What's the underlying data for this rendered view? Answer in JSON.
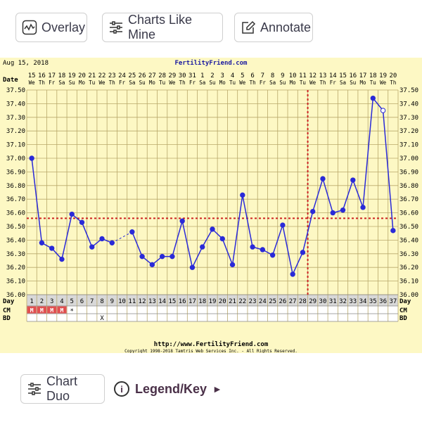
{
  "toolbar": {
    "overlay_label": "Overlay",
    "charts_like_label": "Charts Like Mine",
    "annotate_label": "Annotate"
  },
  "footer_buttons": {
    "chart_duo_label": "Chart Duo",
    "legend_label": "Legend/Key",
    "legend_arrow": "►",
    "info_glyph": "i"
  },
  "icons": [
    "waveform-icon",
    "sliders-icon",
    "edit-icon",
    "info-icon",
    "play-arrow-icon"
  ],
  "colors": {
    "chart_bg": "#fdf8c4",
    "grid": "#b8a86a",
    "line": "#2a2ad8",
    "coverline": "#cc2222",
    "header_bg": "#f5efb0",
    "cm_red": "#e05050"
  },
  "chart_data": {
    "type": "line",
    "date_label": "Aug 15, 2018",
    "site": "FertilityFriend.com",
    "footer_url": "http://www.FertilityFriend.com",
    "copyright": "Copyright 1998-2018 Tamtris Web Services Inc. - All Rights Reserved.",
    "row_labels": {
      "date": "Date",
      "day": "Day",
      "cm": "CM",
      "bd": "BD"
    },
    "dates": [
      "15",
      "16",
      "17",
      "18",
      "19",
      "20",
      "21",
      "22",
      "23",
      "24",
      "25",
      "26",
      "27",
      "28",
      "29",
      "30",
      "31",
      "1",
      "2",
      "3",
      "4",
      "5",
      "6",
      "7",
      "8",
      "9",
      "10",
      "11",
      "12",
      "13",
      "14",
      "15",
      "16",
      "17",
      "18",
      "19",
      "20"
    ],
    "weekdays": [
      "We",
      "Th",
      "Fr",
      "Sa",
      "Su",
      "Mo",
      "Tu",
      "We",
      "Th",
      "Fr",
      "Sa",
      "Su",
      "Mo",
      "Tu",
      "We",
      "Th",
      "Fr",
      "Sa",
      "Su",
      "Mo",
      "Tu",
      "We",
      "Th",
      "Fr",
      "Sa",
      "Su",
      "Mo",
      "Tu",
      "We",
      "Th",
      "Fr",
      "Sa",
      "Su",
      "Mo",
      "Tu",
      "We",
      "Th"
    ],
    "days": [
      1,
      2,
      3,
      4,
      5,
      6,
      7,
      8,
      9,
      10,
      11,
      12,
      13,
      14,
      15,
      16,
      17,
      18,
      19,
      20,
      21,
      22,
      23,
      24,
      25,
      26,
      27,
      28,
      29,
      30,
      31,
      32,
      33,
      34,
      35,
      36,
      37
    ],
    "temps": [
      37.0,
      36.38,
      36.34,
      36.26,
      36.59,
      36.53,
      36.35,
      36.41,
      36.38,
      null,
      36.46,
      36.28,
      36.22,
      36.28,
      36.28,
      36.54,
      36.2,
      36.35,
      36.48,
      36.41,
      36.22,
      36.73,
      36.35,
      36.33,
      36.29,
      36.51,
      36.15,
      36.31,
      36.61,
      36.85,
      36.6,
      36.62,
      36.84,
      36.64,
      37.44,
      37.35,
      36.47
    ],
    "open_points": [
      36
    ],
    "dashed_segments": [
      [
        9,
        11
      ]
    ],
    "cm": [
      "M",
      "M",
      "M",
      "M",
      "*",
      "",
      "",
      "",
      "",
      "",
      "",
      "",
      "",
      "",
      "",
      "",
      "",
      "",
      "",
      "",
      "",
      "",
      "",
      "",
      "",
      "",
      "",
      "",
      "",
      "",
      "",
      "",
      "",
      "",
      "",
      "",
      ""
    ],
    "bd": [
      "",
      "",
      "",
      "",
      "",
      "",
      "",
      "X",
      "",
      "",
      "",
      "",
      "",
      "",
      "",
      "",
      "",
      "",
      "",
      "",
      "",
      "",
      "",
      "",
      "",
      "",
      "",
      "",
      "",
      "",
      "",
      "",
      "",
      "",
      "",
      "",
      ""
    ],
    "ovulation_day": 28,
    "coverline": 36.56,
    "ylim": [
      36.0,
      37.5
    ],
    "y_ticks": [
      "37.50",
      "37.40",
      "37.30",
      "37.20",
      "37.10",
      "37.00",
      "36.90",
      "36.80",
      "36.70",
      "36.60",
      "36.50",
      "36.40",
      "36.30",
      "36.20",
      "36.10",
      "36.00"
    ]
  }
}
